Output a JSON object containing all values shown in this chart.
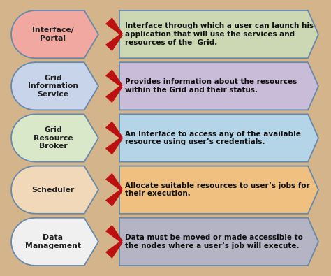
{
  "background_color": "#d4b48a",
  "border_color": "#8B7355",
  "rows": [
    {
      "label": "Interface/\nPortal",
      "label_color": "#f0a8a0",
      "label_text_color": "#222222",
      "arrow_color": "#bb1111",
      "desc_color": "#ccd8b4",
      "desc_text": "Interface through which a user can launch his\napplication that will use the services and\nresources of the  Grid."
    },
    {
      "label": "Grid\nInformation\nService",
      "label_color": "#c8d4ea",
      "label_text_color": "#222222",
      "arrow_color": "#bb1111",
      "desc_color": "#c8bcd8",
      "desc_text": "Provides information about the resources\nwithin the Grid and their status."
    },
    {
      "label": "Grid\nResource\nBroker",
      "label_color": "#d8e8c8",
      "label_text_color": "#222222",
      "arrow_color": "#bb1111",
      "desc_color": "#b4d4e8",
      "desc_text": "An Interface to access any of the available\nresource using user’s credentials."
    },
    {
      "label": "Scheduler",
      "label_color": "#f0d8b8",
      "label_text_color": "#222222",
      "arrow_color": "#bb1111",
      "desc_color": "#f0c080",
      "desc_text": "Allocate suitable resources to user’s jobs for\ntheir execution."
    },
    {
      "label": "Data\nManagement",
      "label_color": "#f0f0f0",
      "label_text_color": "#222222",
      "arrow_color": "#bb1111",
      "desc_color": "#b4b4c4",
      "desc_text": "Data must be moved or made accessible to\nthe nodes where a user’s job will execute."
    }
  ],
  "figsize": [
    4.74,
    3.95
  ],
  "dpi": 100
}
